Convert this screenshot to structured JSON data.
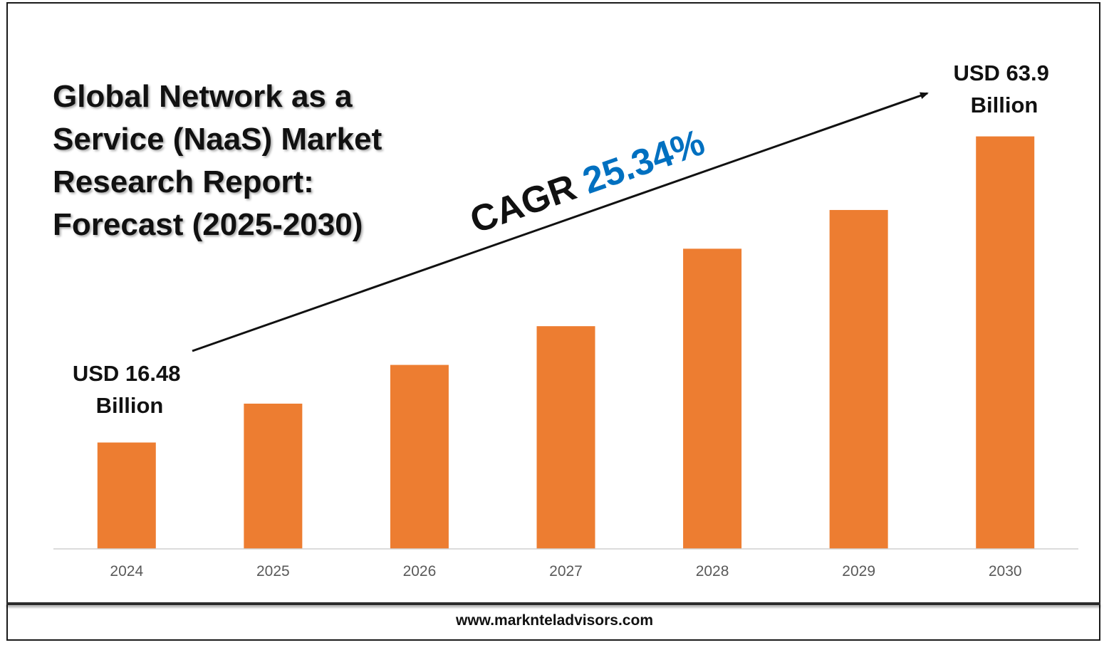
{
  "title_lines": [
    "Global Network as a",
    "Service (NaaS) Market",
    "Research Report:",
    "Forecast (2025-2030)"
  ],
  "footer": "www.marknteladvisors.com",
  "chart_data": {
    "type": "bar",
    "categories": [
      "2024",
      "2025",
      "2026",
      "2027",
      "2028",
      "2029",
      "2030"
    ],
    "values": [
      16.48,
      22.5,
      28.5,
      34.5,
      46.5,
      52.5,
      63.9
    ],
    "unit": "USD Billion",
    "ylim": [
      0,
      74
    ],
    "grid": false,
    "bar_color": "#ED7D31",
    "annotations": {
      "start_label": [
        "USD 16.48",
        "Billion"
      ],
      "end_label": [
        "USD 63.9",
        "Billion"
      ],
      "cagr_prefix": "CAGR ",
      "cagr_value": "25.34%",
      "cagr_value_color": "#0070C0"
    }
  }
}
